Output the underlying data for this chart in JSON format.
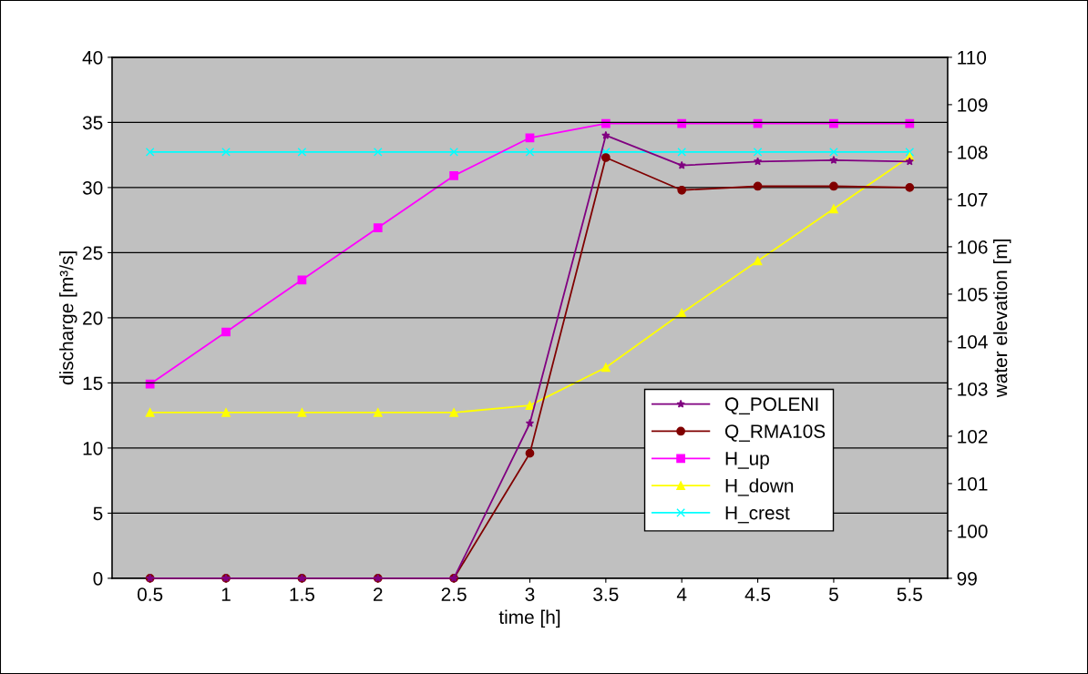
{
  "chart_data": {
    "type": "line",
    "xlabel": "time [h]",
    "ylabel": "discharge [m³/s]",
    "y2label": "water elevation [m]",
    "categories": [
      "0.5",
      "1",
      "1.5",
      "2",
      "2.5",
      "3",
      "3.5",
      "4",
      "4.5",
      "5",
      "5.5"
    ],
    "ylim": [
      0,
      40
    ],
    "yticks": [
      0,
      5,
      10,
      15,
      20,
      25,
      30,
      35,
      40
    ],
    "y2lim": [
      99,
      110
    ],
    "y2ticks": [
      99,
      100,
      101,
      102,
      103,
      104,
      105,
      106,
      107,
      108,
      109,
      110
    ],
    "grid": "y",
    "legend": "lower right",
    "series": [
      {
        "name": "Q_POLENI",
        "color": "#800080",
        "marker": "star",
        "values": [
          0,
          0,
          0,
          0,
          0,
          11.9,
          34.0,
          31.7,
          32.0,
          32.1,
          32.0
        ]
      },
      {
        "name": "Q_RMA10S",
        "color": "#800000",
        "marker": "circle",
        "values": [
          0,
          0,
          0,
          0,
          0,
          9.6,
          32.3,
          29.8,
          30.1,
          30.1,
          30.0
        ]
      },
      {
        "name": "H_up",
        "color": "#ff00ff",
        "marker": "square",
        "axis": "y2",
        "values": [
          103.1,
          104.2,
          105.3,
          106.4,
          107.5,
          108.3,
          108.6,
          108.6,
          108.6,
          108.6,
          108.6
        ]
      },
      {
        "name": "H_down",
        "color": "#ffff00",
        "marker": "triangle",
        "axis": "y2",
        "values": [
          102.5,
          102.5,
          102.5,
          102.5,
          102.5,
          102.65,
          103.45,
          104.6,
          105.7,
          106.8,
          107.9
        ]
      },
      {
        "name": "H_crest",
        "color": "#00ffff",
        "marker": "cross",
        "axis": "y2",
        "values": [
          108.0,
          108.0,
          108.0,
          108.0,
          108.0,
          108.0,
          108.0,
          108.0,
          108.0,
          108.0,
          108.0
        ]
      }
    ]
  }
}
